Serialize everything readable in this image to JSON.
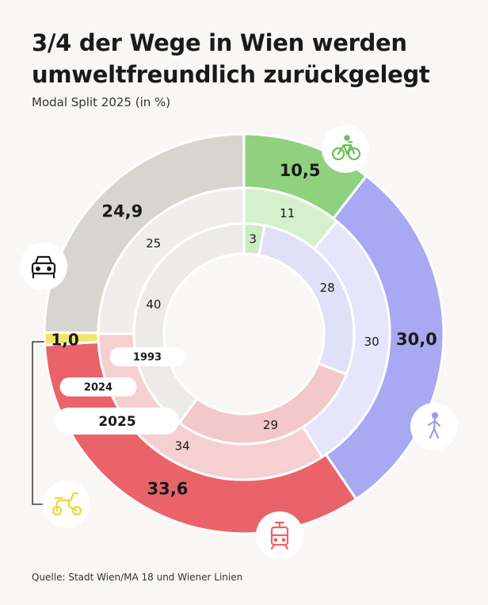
{
  "title": "3/4 der Wege in Wien werden umweltfreundlich zurückgelegt",
  "subtitle": "Modal Split 2025 (in %)",
  "source": "Quelle: Stadt Wien/MA 18 und Wiener Linien",
  "chart_data": {
    "type": "donut",
    "title": "3/4 der Wege in Wien werden umweltfreundlich zurückgelegt",
    "subtitle": "Modal Split 2025 (in %)",
    "categories": [
      "Rad",
      "Zu Fuß",
      "Öffentlicher Verkehr",
      "Moped",
      "Auto"
    ],
    "series": [
      {
        "name": "2025",
        "values": [
          10.5,
          30.0,
          33.6,
          1.0,
          24.9
        ],
        "labels": [
          "10,5",
          "30,0",
          "33,6",
          "1,0",
          "24,9"
        ]
      },
      {
        "name": "2024",
        "values": [
          11,
          30,
          34,
          null,
          25
        ],
        "labels": [
          "11",
          "30",
          "34",
          "",
          "25"
        ]
      },
      {
        "name": "1993",
        "values": [
          3,
          28,
          29,
          null,
          40
        ],
        "labels": [
          "3",
          "28",
          "29",
          "",
          "40"
        ]
      }
    ],
    "colors": {
      "Rad": [
        "#8fd17f",
        "#d4f0cd",
        "#cdebc4"
      ],
      "Zu Fuß": [
        "#a8a9f2",
        "#e5e5fb",
        "#e0e0f9"
      ],
      "Öffentlicher Verkehr": [
        "#eb636a",
        "#f6cfd1",
        "#f3c8ca"
      ],
      "Moped": [
        "#f2e46b",
        "#f2e46b",
        "#f2e46b"
      ],
      "Auto": [
        "#d7d5d0",
        "#efeeec",
        "#ecebe8"
      ]
    },
    "icons": {
      "Rad": "bicycle-icon",
      "Zu Fuß": "pedestrian-icon",
      "Öffentlicher Verkehr": "tram-icon",
      "Moped": "scooter-icon",
      "Auto": "car-icon"
    },
    "icon_colors": {
      "Rad": "#6cc15a",
      "Zu Fuß": "#9a9cf0",
      "Öffentlicher Verkehr": "#eb636a",
      "Moped": "#ecd836",
      "Auto": "#1a1a1a"
    }
  }
}
